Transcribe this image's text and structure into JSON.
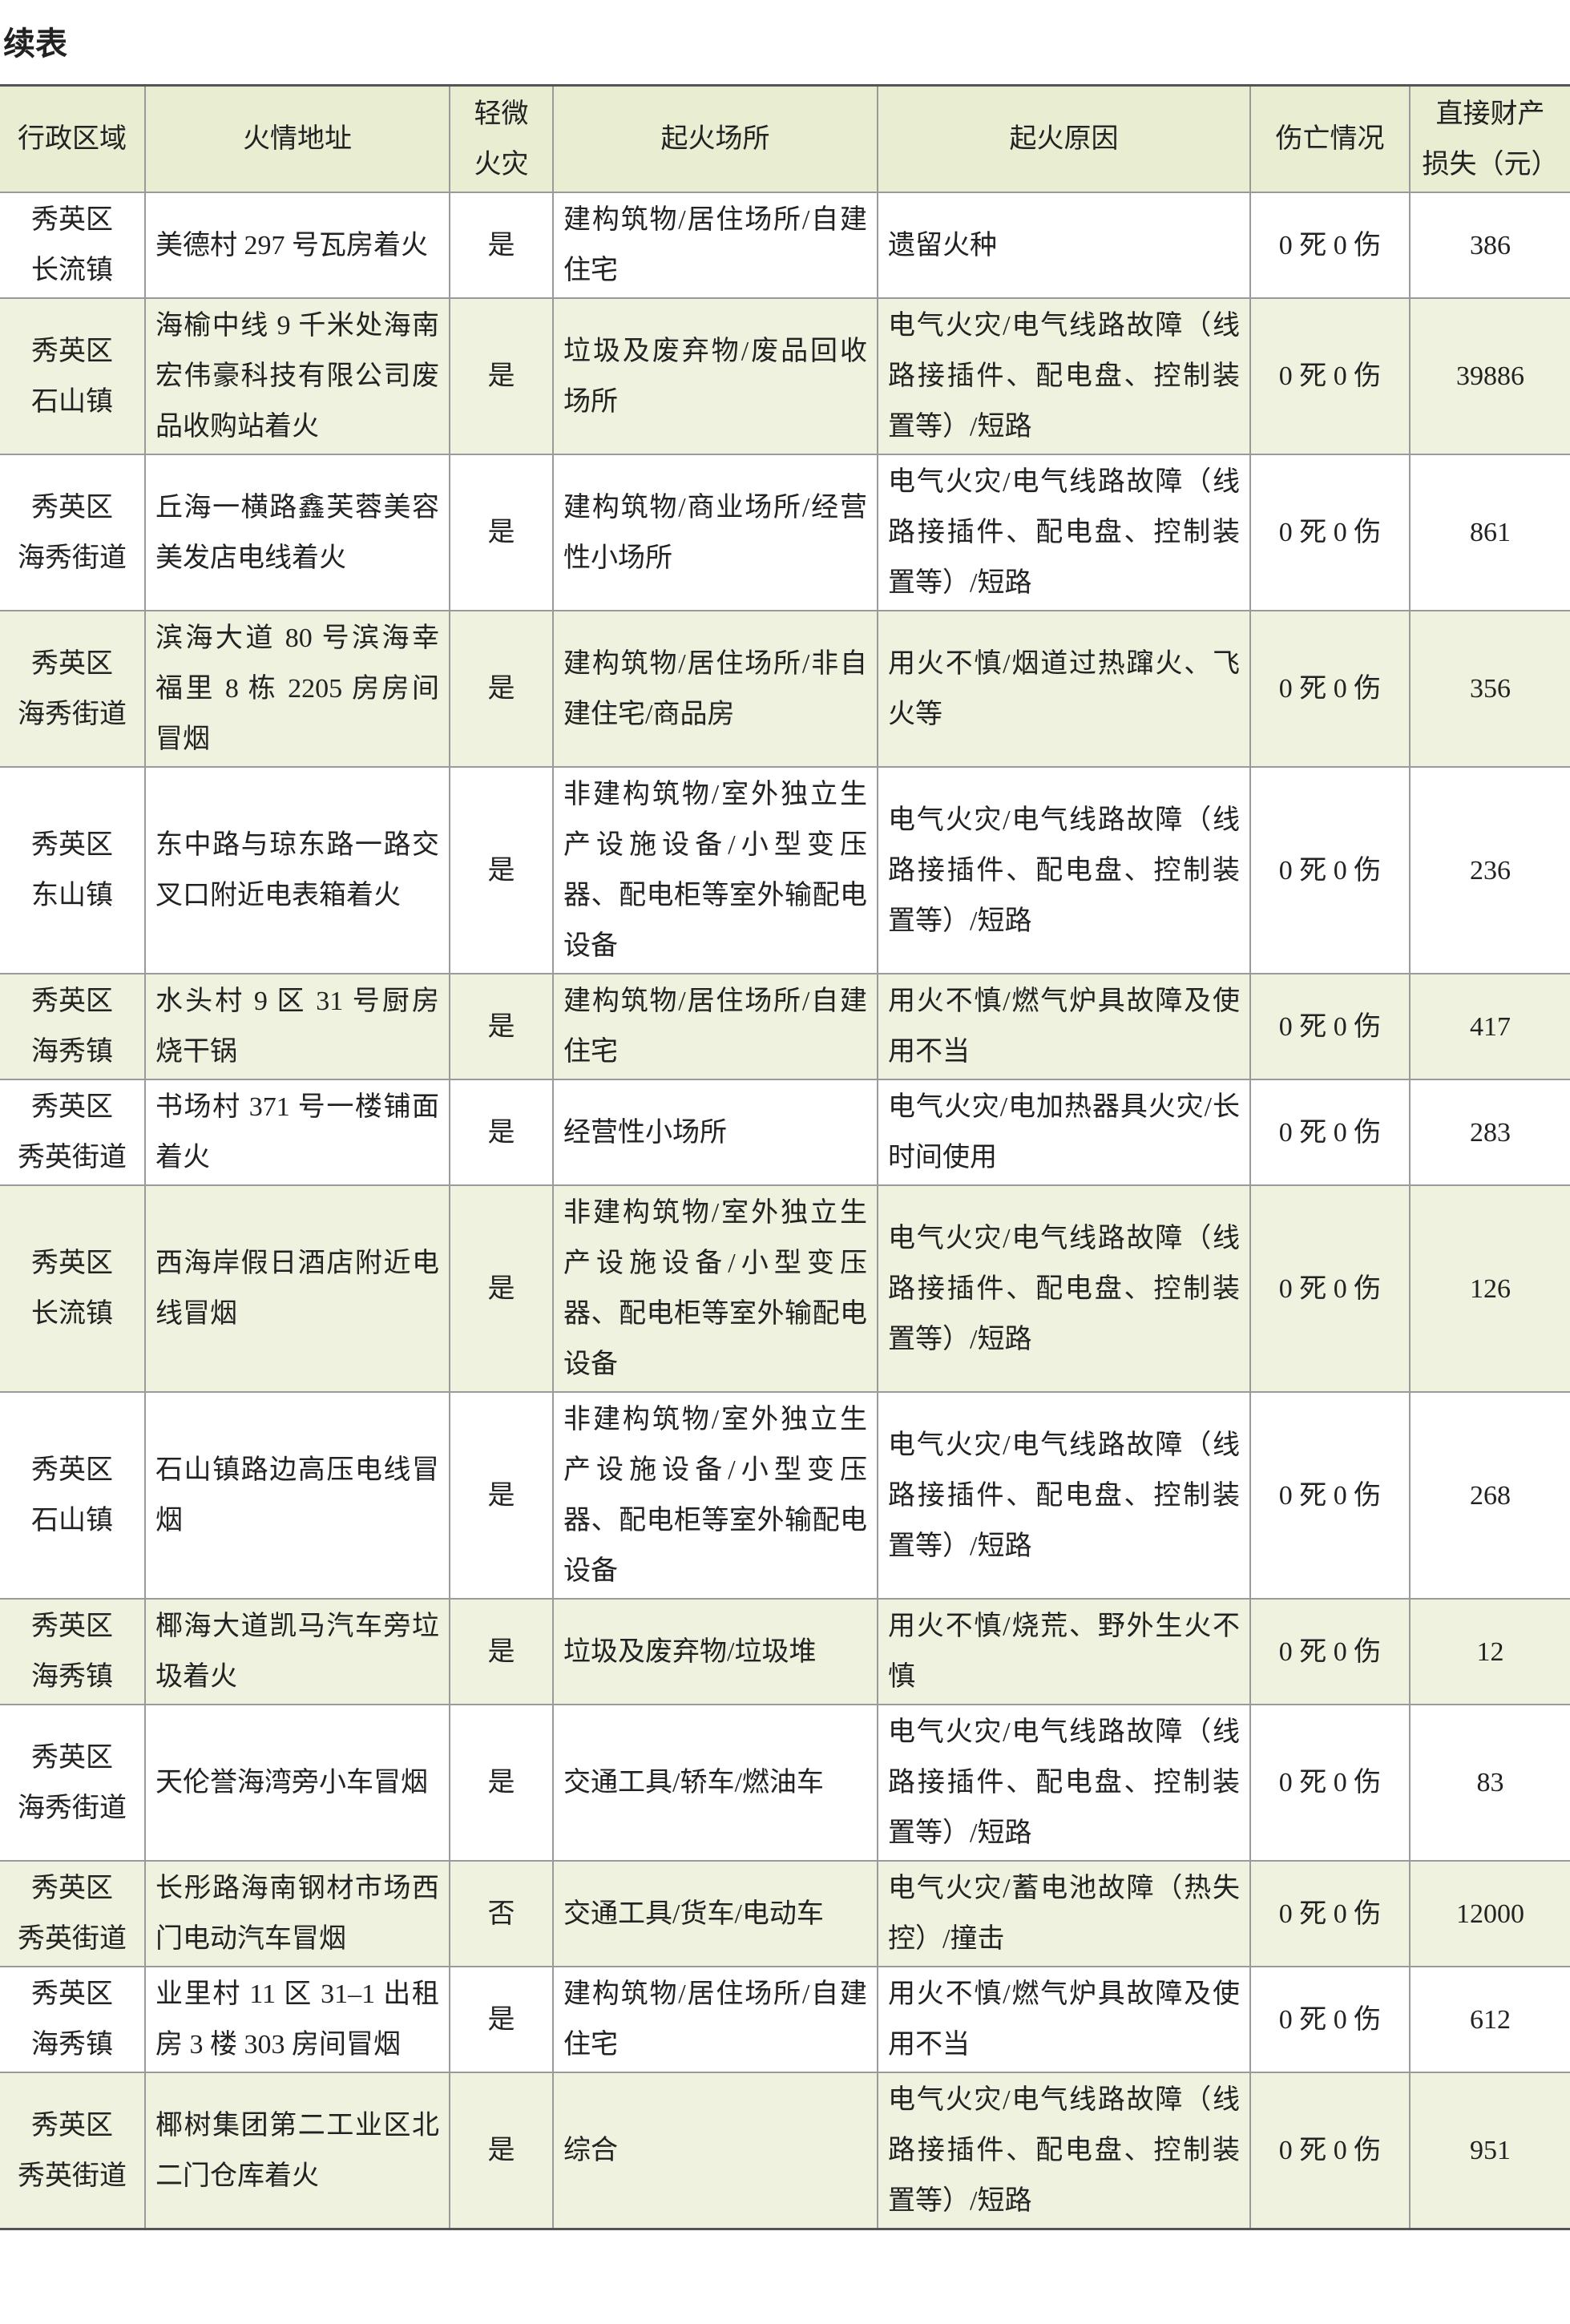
{
  "title": "续表",
  "table": {
    "header": [
      "行政区域",
      "火情地址",
      "轻微\n火灾",
      "起火场所",
      "起火原因",
      "伤亡情况",
      "直接财产\n损失（元）"
    ],
    "rows": [
      [
        "秀英区\n长流镇",
        "美德村 297 号瓦房着火",
        "是",
        "建构筑物/居住场所/自建住宅",
        "遗留火种",
        "0 死 0 伤",
        386
      ],
      [
        "秀英区\n石山镇",
        "海榆中线 9 千米处海南宏伟豪科技有限公司废品收购站着火",
        "是",
        "垃圾及废弃物/废品回收场所",
        "电气火灾/电气线路故障（线路接插件、配电盘、控制装置等）/短路",
        "0 死 0 伤",
        39886
      ],
      [
        "秀英区\n海秀街道",
        "丘海一横路鑫芙蓉美容美发店电线着火",
        "是",
        "建构筑物/商业场所/经营性小场所",
        "电气火灾/电气线路故障（线路接插件、配电盘、控制装置等）/短路",
        "0 死 0 伤",
        861
      ],
      [
        "秀英区\n海秀街道",
        "滨海大道 80 号滨海幸福里 8 栋 2205 房房间冒烟",
        "是",
        "建构筑物/居住场所/非自建住宅/商品房",
        "用火不慎/烟道过热蹿火、飞火等",
        "0 死 0 伤",
        356
      ],
      [
        "秀英区\n东山镇",
        "东中路与琼东路一路交叉口附近电表箱着火",
        "是",
        "非建构筑物/室外独立生产设施设备/小型变压器、配电柜等室外输配电设备",
        "电气火灾/电气线路故障（线路接插件、配电盘、控制装置等）/短路",
        "0 死 0 伤",
        236
      ],
      [
        "秀英区\n海秀镇",
        "水头村 9 区 31 号厨房烧干锅",
        "是",
        "建构筑物/居住场所/自建住宅",
        "用火不慎/燃气炉具故障及使用不当",
        "0 死 0 伤",
        417
      ],
      [
        "秀英区\n秀英街道",
        "书场村 371 号一楼铺面着火",
        "是",
        "经营性小场所",
        "电气火灾/电加热器具火灾/长时间使用",
        "0 死 0 伤",
        283
      ],
      [
        "秀英区\n长流镇",
        "西海岸假日酒店附近电线冒烟",
        "是",
        "非建构筑物/室外独立生产设施设备/小型变压器、配电柜等室外输配电设备",
        "电气火灾/电气线路故障（线路接插件、配电盘、控制装置等）/短路",
        "0 死 0 伤",
        126
      ],
      [
        "秀英区\n石山镇",
        "石山镇路边高压电线冒烟",
        "是",
        "非建构筑物/室外独立生产设施设备/小型变压器、配电柜等室外输配电设备",
        "电气火灾/电气线路故障（线路接插件、配电盘、控制装置等）/短路",
        "0 死 0 伤",
        268
      ],
      [
        "秀英区\n海秀镇",
        "椰海大道凯马汽车旁垃圾着火",
        "是",
        "垃圾及废弃物/垃圾堆",
        "用火不慎/烧荒、野外生火不慎",
        "0 死 0 伤",
        12
      ],
      [
        "秀英区\n海秀街道",
        "天伦誉海湾旁小车冒烟",
        "是",
        "交通工具/轿车/燃油车",
        "电气火灾/电气线路故障（线路接插件、配电盘、控制装置等）/短路",
        "0 死 0 伤",
        83
      ],
      [
        "秀英区\n秀英街道",
        "长彤路海南钢材市场西门电动汽车冒烟",
        "否",
        "交通工具/货车/电动车",
        "电气火灾/蓄电池故障（热失控）/撞击",
        "0 死 0 伤",
        12000
      ],
      [
        "秀英区\n海秀镇",
        "业里村 11 区 31–1 出租房 3 楼 303 房间冒烟",
        "是",
        "建构筑物/居住场所/自建住宅",
        "用火不慎/燃气炉具故障及使用不当",
        "0 死 0 伤",
        612
      ],
      [
        "秀英区\n秀英街道",
        "椰树集团第二工业区北二门仓库着火",
        "是",
        "综合",
        "电气火灾/电气线路故障（线路接插件、配电盘、控制装置等）/短路",
        "0 死 0 伤",
        951
      ]
    ]
  }
}
